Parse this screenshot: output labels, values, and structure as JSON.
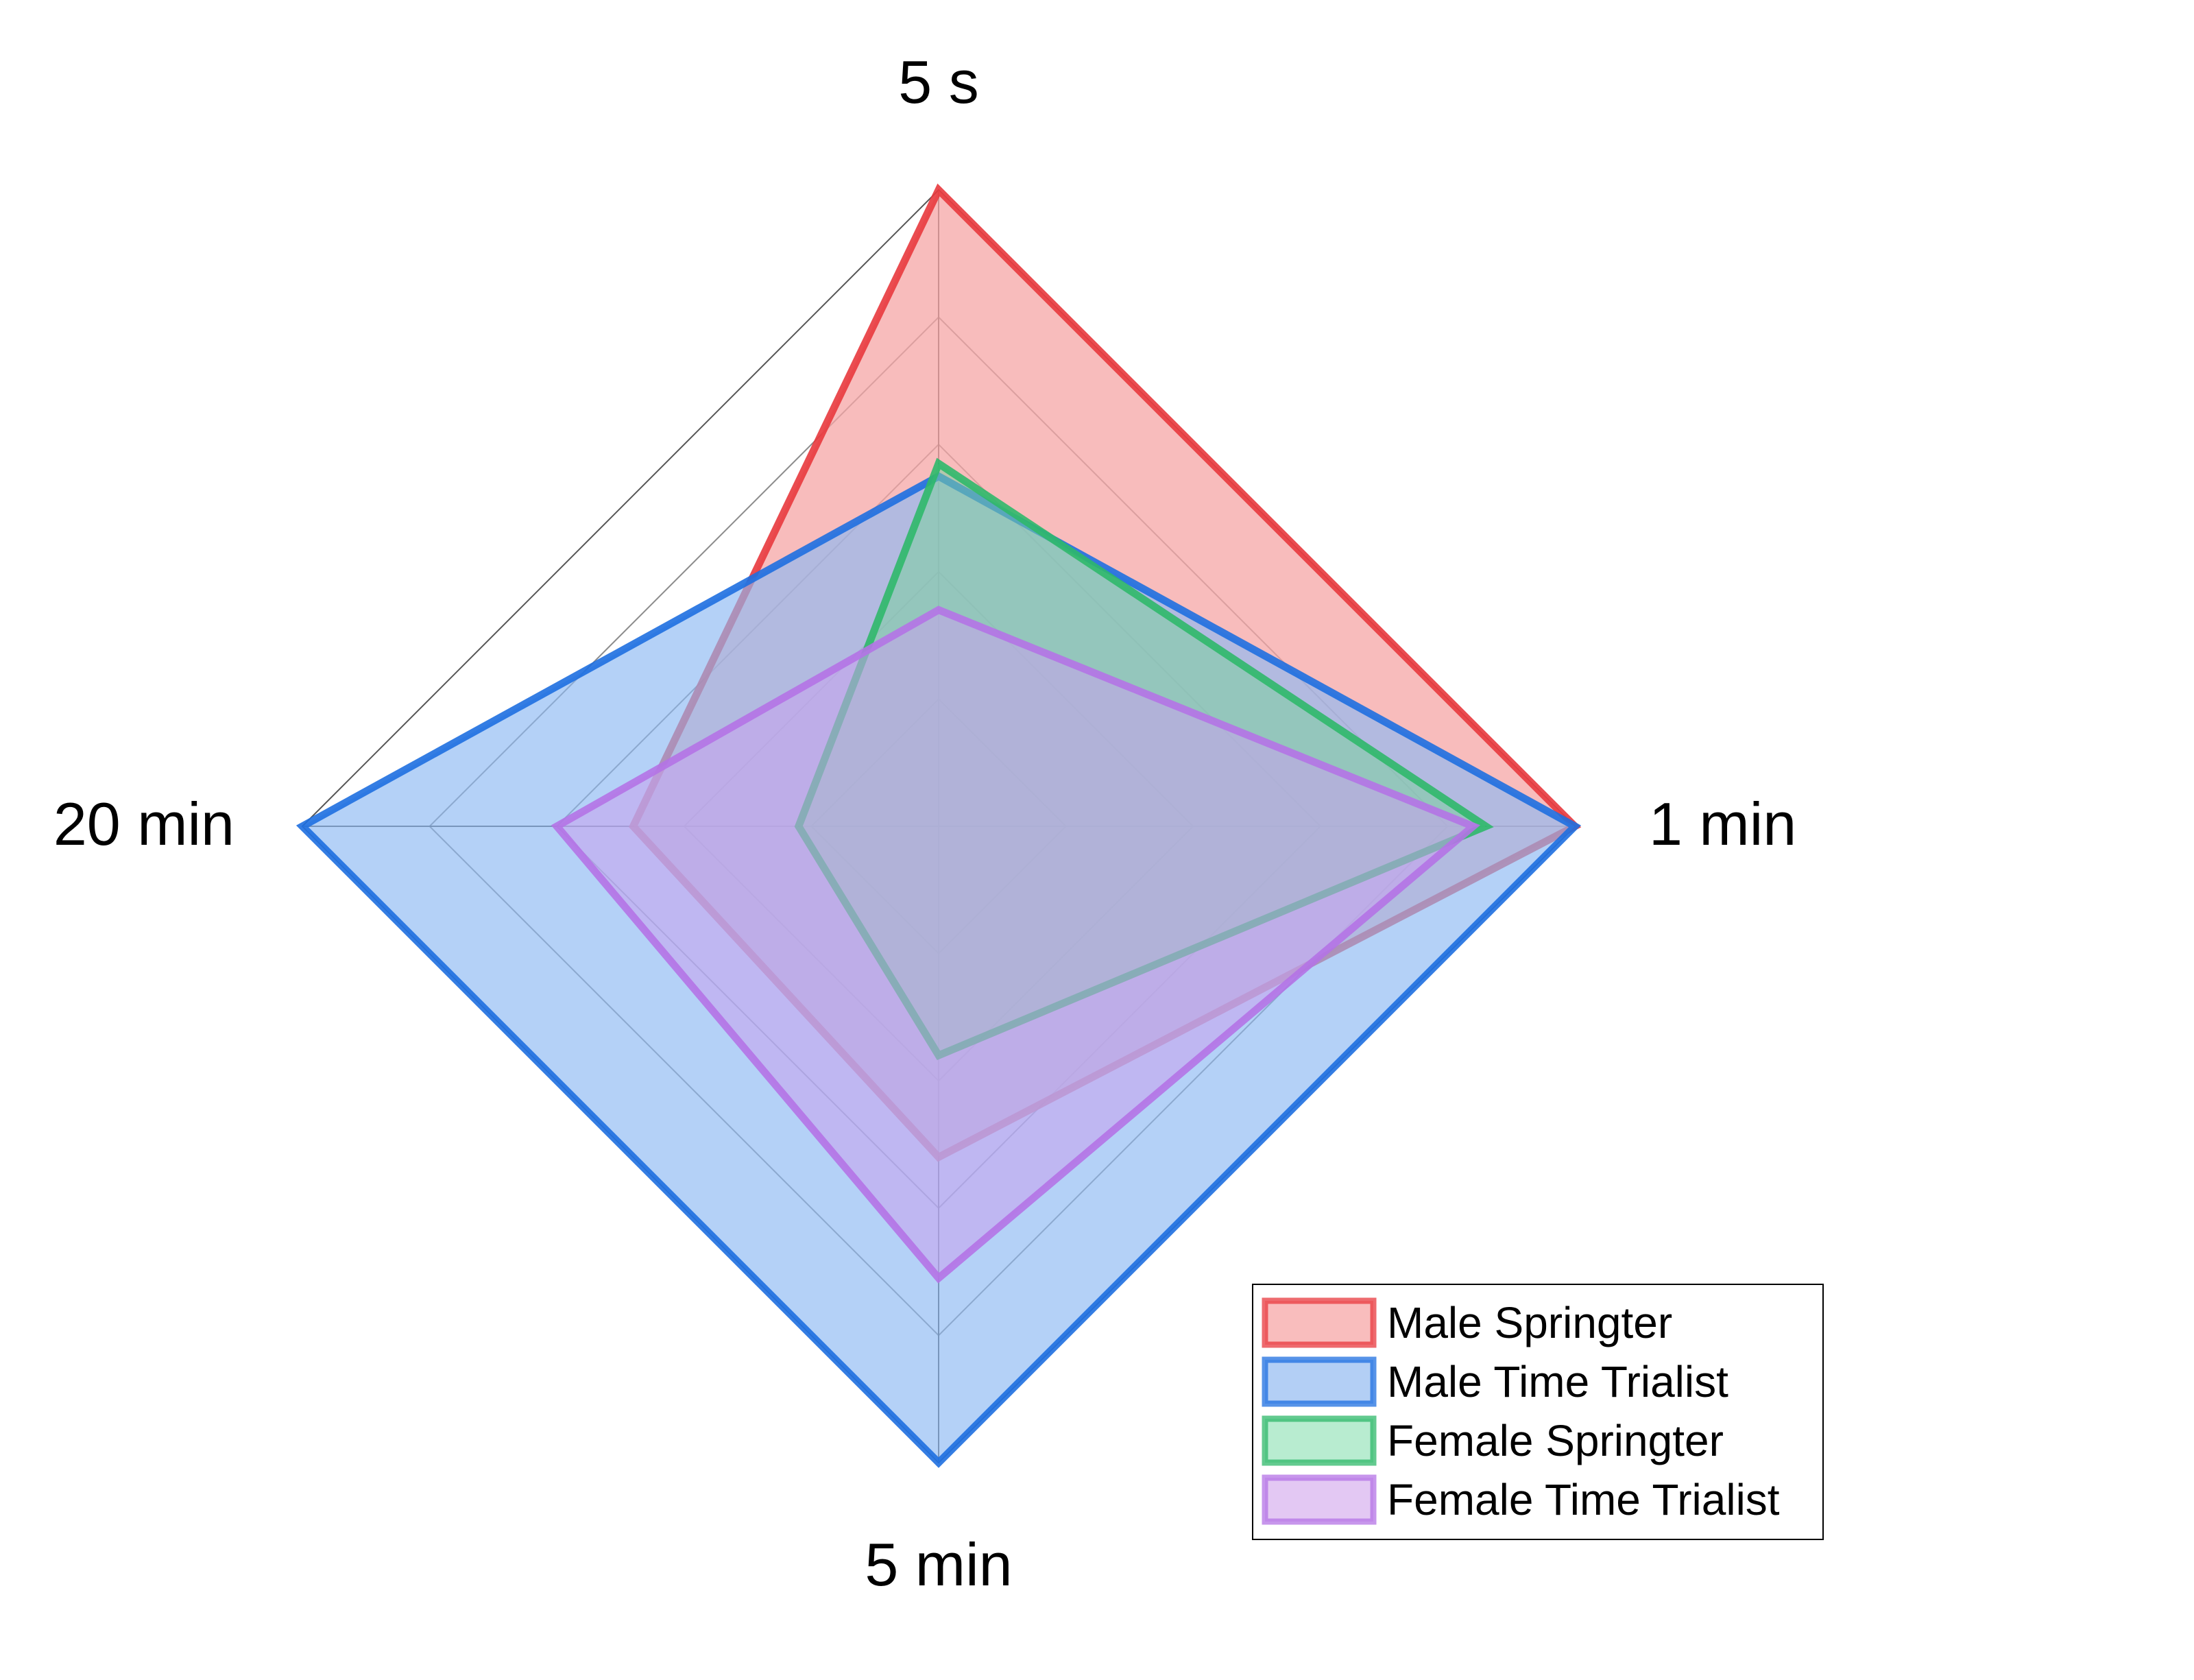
{
  "chart_data": {
    "type": "radar",
    "axes": [
      "5 s",
      "1 min",
      "5 min",
      "20 min"
    ],
    "scale": {
      "min": 0,
      "max": 1,
      "rings": 5
    },
    "legend_position": "bottom-right",
    "series": [
      {
        "name": "Male Springter",
        "values": [
          1.0,
          1.0,
          0.52,
          0.48
        ],
        "color": "#e8383d",
        "fill": "#f6a6a6",
        "fill_opacity": 0.75,
        "legend_fill": "#f9bdbd"
      },
      {
        "name": "Male Time Trialist",
        "values": [
          0.55,
          1.0,
          1.0,
          1.0
        ],
        "color": "#1e6fe0",
        "fill": "#8cb8f2",
        "fill_opacity": 0.65,
        "legend_fill": "#b3cff5"
      },
      {
        "name": "Female Springter",
        "values": [
          0.57,
          0.86,
          0.36,
          0.22
        ],
        "color": "#2fb86a",
        "fill": "#7ccf9e",
        "fill_opacity": 0.55,
        "legend_fill": "#b8ecd0"
      },
      {
        "name": "Female Time Trialist",
        "values": [
          0.34,
          0.84,
          0.71,
          0.6
        ],
        "color": "#b473e6",
        "fill": "#c9a2ee",
        "fill_opacity": 0.55,
        "legend_fill": "#e3c8f3"
      }
    ]
  }
}
